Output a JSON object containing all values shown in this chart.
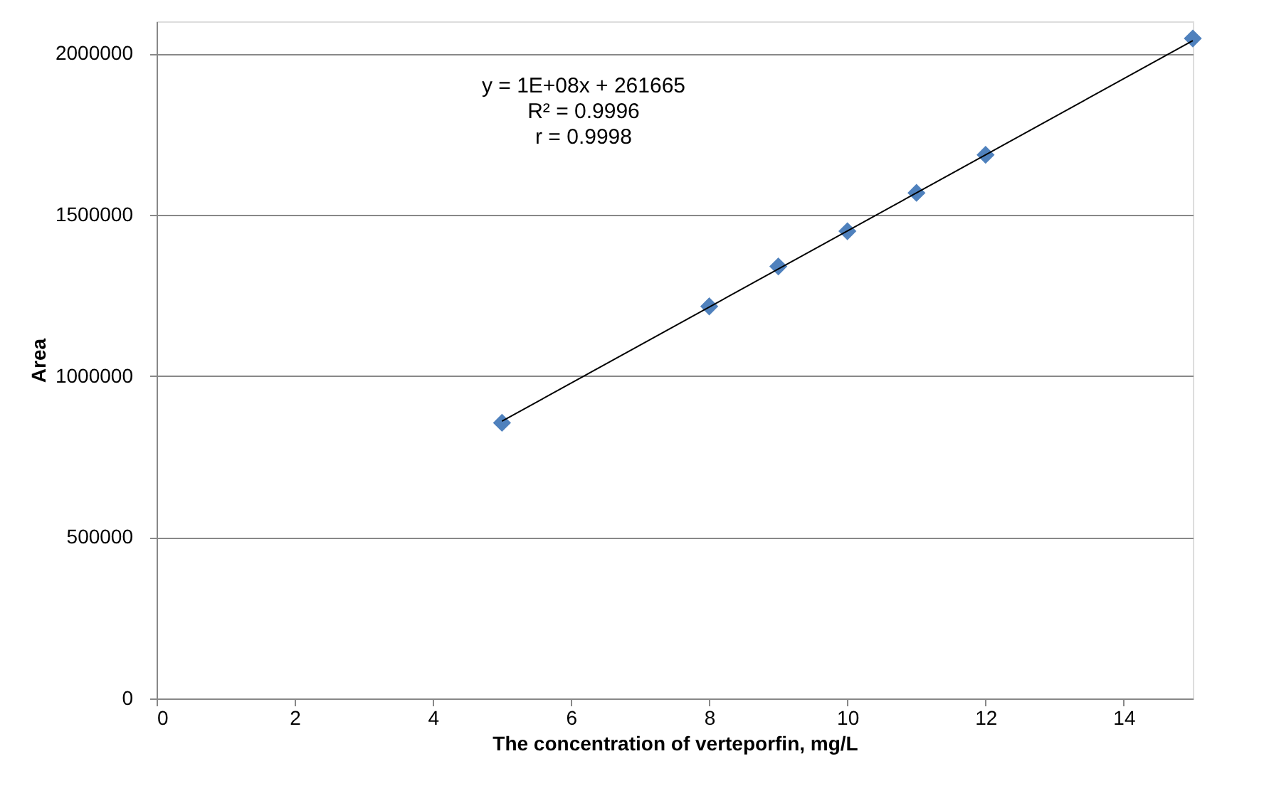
{
  "chart_data": {
    "type": "scatter",
    "xlabel": "The concentration of verteporfin, mg/L",
    "ylabel": "Area",
    "xlim": [
      0,
      15
    ],
    "xticks": [
      0,
      2,
      4,
      6,
      8,
      10,
      12,
      14
    ],
    "ylim": [
      0,
      2100000
    ],
    "yticks": [
      0,
      500000,
      1000000,
      1500000,
      2000000
    ],
    "grid": "y",
    "series": [
      {
        "marker": "diamond",
        "color": "#4f81bd",
        "x": [
          5,
          8,
          9,
          10,
          11,
          12,
          15
        ],
        "values": [
          855000,
          1216000,
          1340000,
          1449000,
          1568000,
          1686000,
          2047000
        ]
      },
      {
        "type": "line",
        "marker": "none",
        "color": "#000000",
        "x": [
          5,
          15
        ],
        "values": [
          860000,
          2040000
        ]
      }
    ],
    "annotations": [
      "y = 1E+08x + 261665",
      "R² = 0.9996",
      "r = 0.9998"
    ]
  }
}
